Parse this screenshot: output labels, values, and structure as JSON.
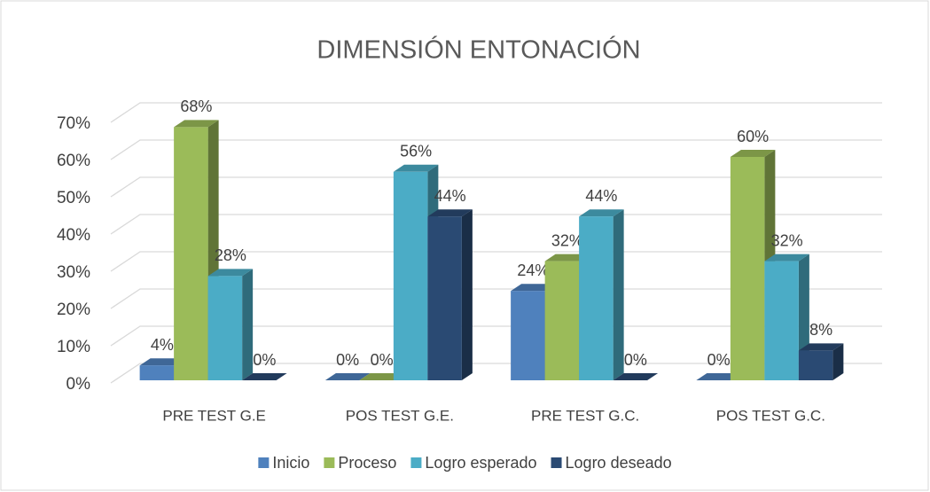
{
  "chart_data": {
    "type": "bar3d",
    "title": "DIMENSIÓN ENTONACIÓN",
    "categories": [
      "PRE TEST G.E",
      "POS TEST G.E.",
      "PRE TEST G.C.",
      "POS TEST G.C."
    ],
    "series": [
      {
        "name": "Inicio",
        "color": "#4f81bd",
        "values": [
          4,
          0,
          24,
          0
        ],
        "value_labels": [
          "4%",
          "0%",
          "24%",
          "0%"
        ]
      },
      {
        "name": "Proceso",
        "color": "#9bbb59",
        "values": [
          68,
          0,
          32,
          60
        ],
        "value_labels": [
          "68%",
          "0%",
          "32%",
          "60%"
        ]
      },
      {
        "name": "Logro esperado",
        "color": "#4bacc6",
        "values": [
          28,
          56,
          44,
          32
        ],
        "value_labels": [
          "28%",
          "56%",
          "44%",
          "32%"
        ]
      },
      {
        "name": "Logro deseado",
        "color": "#2a4a73",
        "values": [
          0,
          44,
          0,
          8
        ],
        "value_labels": [
          "0%",
          "44%",
          "0%",
          "8%"
        ]
      }
    ],
    "ylim": [
      0,
      70
    ],
    "yticks": [
      {
        "value": 0,
        "label": "0%"
      },
      {
        "value": 10,
        "label": "10%"
      },
      {
        "value": 20,
        "label": "20%"
      },
      {
        "value": 30,
        "label": "30%"
      },
      {
        "value": 40,
        "label": "40%"
      },
      {
        "value": 50,
        "label": "50%"
      },
      {
        "value": 60,
        "label": "60%"
      },
      {
        "value": 70,
        "label": "70%"
      }
    ],
    "grid": true,
    "legend": "bottom"
  }
}
